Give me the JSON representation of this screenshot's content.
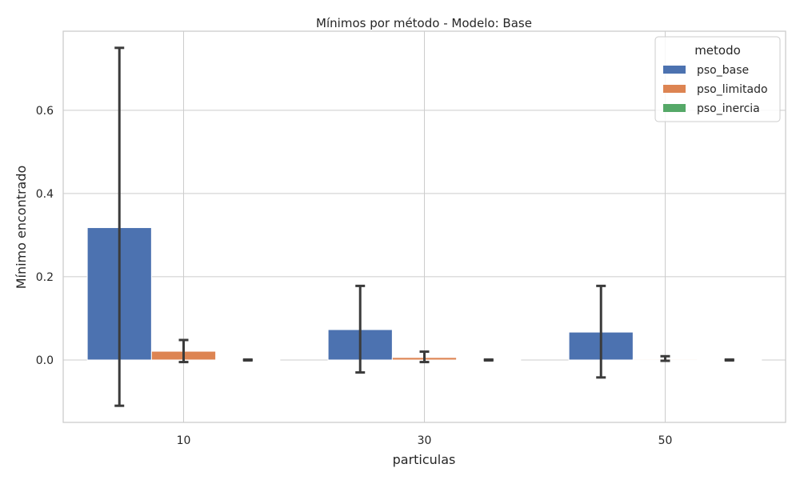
{
  "chart_data": {
    "type": "bar",
    "title": "Mínimos por método - Modelo: Base",
    "xlabel": "particulas",
    "ylabel": "Mínimo encontrado",
    "categories": [
      "10",
      "30",
      "50"
    ],
    "ylim": [
      -0.15,
      0.79
    ],
    "yticks": [
      0.0,
      0.2,
      0.4,
      0.6
    ],
    "ytick_labels": [
      "0.0",
      "0.2",
      "0.4",
      "0.6"
    ],
    "grid": true,
    "legend": {
      "title": "metodo",
      "placement": "top-right"
    },
    "series": [
      {
        "name": "pso_base",
        "color": "#4c72b0",
        "values": [
          0.318,
          0.073,
          0.067
        ],
        "err_low": [
          -0.11,
          -0.03,
          -0.042
        ],
        "err_high": [
          0.75,
          0.178,
          0.178
        ]
      },
      {
        "name": "pso_limitado",
        "color": "#dd8452",
        "values": [
          0.021,
          0.006,
          0.002
        ],
        "err_low": [
          -0.005,
          -0.005,
          -0.002
        ],
        "err_high": [
          0.048,
          0.02,
          0.009
        ]
      },
      {
        "name": "pso_inercia",
        "color": "#55a868",
        "values": [
          0.0,
          0.0,
          0.0
        ],
        "err_low": [
          -0.001,
          -0.001,
          -0.001
        ],
        "err_high": [
          0.001,
          0.001,
          0.001
        ]
      }
    ]
  }
}
